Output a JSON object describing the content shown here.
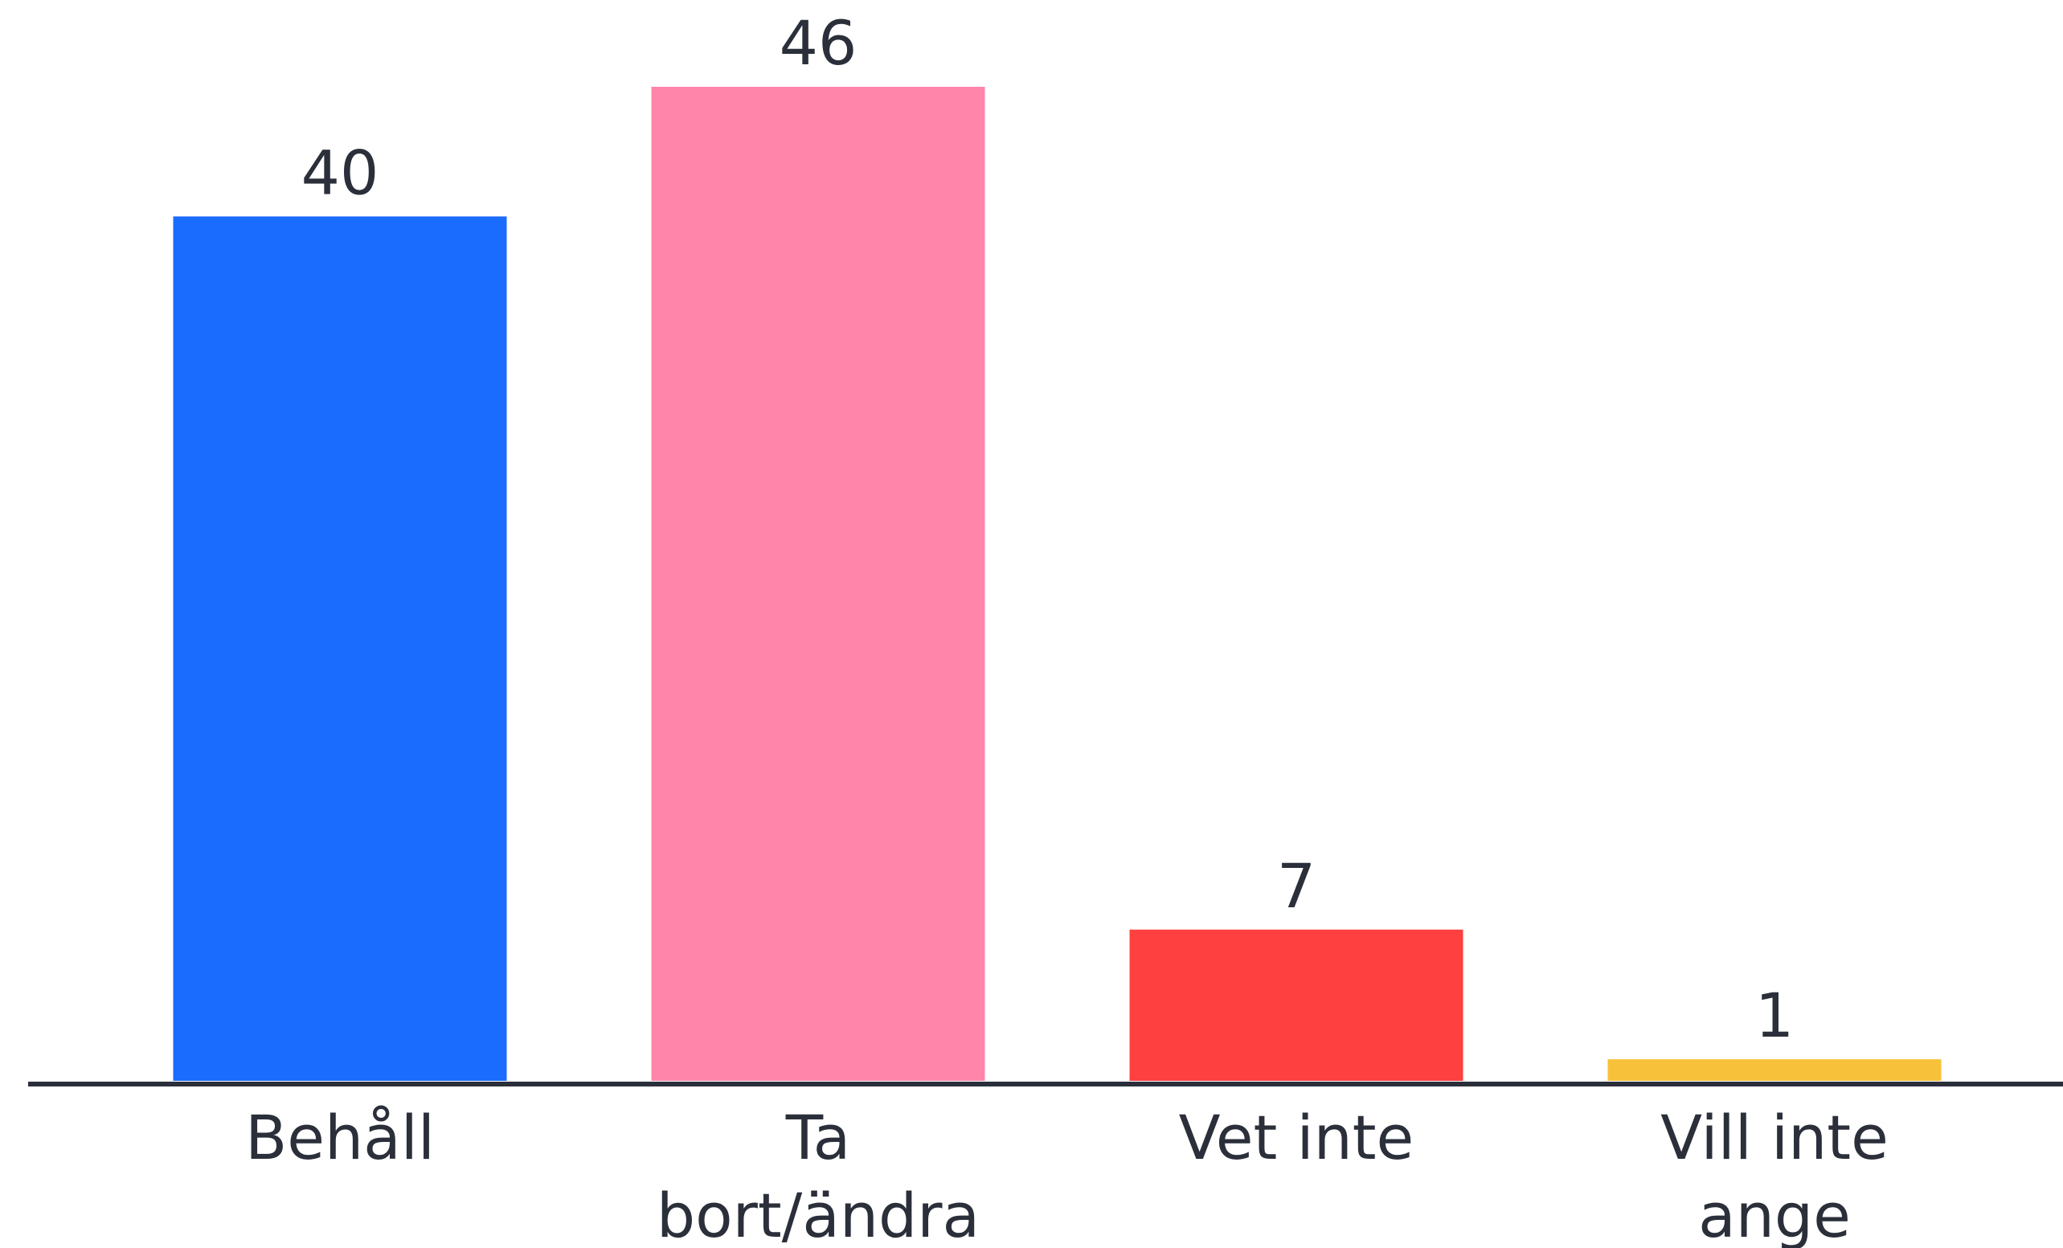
{
  "chart_data": {
    "type": "bar",
    "categories": [
      [
        "Behåll"
      ],
      [
        "Ta",
        "bort/ändra"
      ],
      [
        "Vet inte"
      ],
      [
        "Vill inte",
        "ange"
      ]
    ],
    "values": [
      40,
      46,
      7,
      1
    ],
    "value_labels": [
      "40",
      "46",
      "7",
      "1"
    ],
    "colors": [
      "#1a6bff",
      "#ff85ab",
      "#ff4040",
      "#f8c13a"
    ],
    "title": "",
    "xlabel": "",
    "ylabel": "",
    "ylim": [
      0,
      46
    ],
    "grid": false,
    "legend": "none"
  }
}
